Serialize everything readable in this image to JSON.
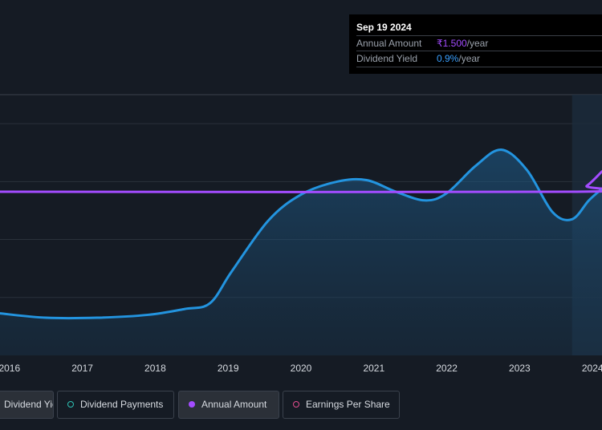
{
  "tooltip": {
    "date": "Sep 19 2024",
    "annual_amount_label": "Annual Amount",
    "annual_amount_value": "₹1.500",
    "annual_amount_unit": "/year",
    "dividend_yield_label": "Dividend Yield",
    "dividend_yield_value": "0.9%",
    "dividend_yield_unit": "/year"
  },
  "legend": [
    {
      "label": "Dividend Yield",
      "color": "#2394df",
      "style": "filled",
      "active": true
    },
    {
      "label": "Dividend Payments",
      "color": "#2ec4b6",
      "style": "hollow",
      "active": false
    },
    {
      "label": "Annual Amount",
      "color": "#a34cff",
      "style": "filled",
      "active": true
    },
    {
      "label": "Earnings Per Share",
      "color": "#e24d8f",
      "style": "hollow",
      "active": false
    }
  ],
  "colors": {
    "background": "#151b24",
    "yield_line": "#2394df",
    "amount_line": "#a34cff",
    "grid": "#2a313b",
    "axis_text": "#d7dbe1"
  },
  "chart_data": {
    "type": "line",
    "x_ticks": [
      "2016",
      "2017",
      "2018",
      "2019",
      "2020",
      "2021",
      "2022",
      "2023",
      "2024"
    ],
    "xlim": [
      2015.87,
      2024.13
    ],
    "ylim": [
      0,
      1.8
    ],
    "forecast_start": 2023.72,
    "series": [
      {
        "name": "Dividend Yield",
        "color": "#2394df",
        "area": true,
        "x": [
          2015.87,
          2016.5,
          2017.2,
          2017.9,
          2018.4,
          2018.75,
          2019.05,
          2019.55,
          2020.0,
          2020.5,
          2020.9,
          2021.3,
          2021.7,
          2022.0,
          2022.4,
          2022.75,
          2023.1,
          2023.45,
          2023.72,
          2023.95,
          2024.13
        ],
        "y": [
          0.29,
          0.26,
          0.26,
          0.28,
          0.32,
          0.36,
          0.58,
          0.93,
          1.11,
          1.2,
          1.21,
          1.13,
          1.07,
          1.12,
          1.31,
          1.42,
          1.28,
          0.99,
          0.94,
          1.07,
          1.15
        ]
      },
      {
        "name": "Annual Amount",
        "color": "#a34cff",
        "area": false,
        "x": [
          2015.87,
          2023.72,
          2023.92,
          2024.13
        ],
        "y": [
          1.13,
          1.13,
          1.17,
          1.27
        ]
      }
    ]
  }
}
